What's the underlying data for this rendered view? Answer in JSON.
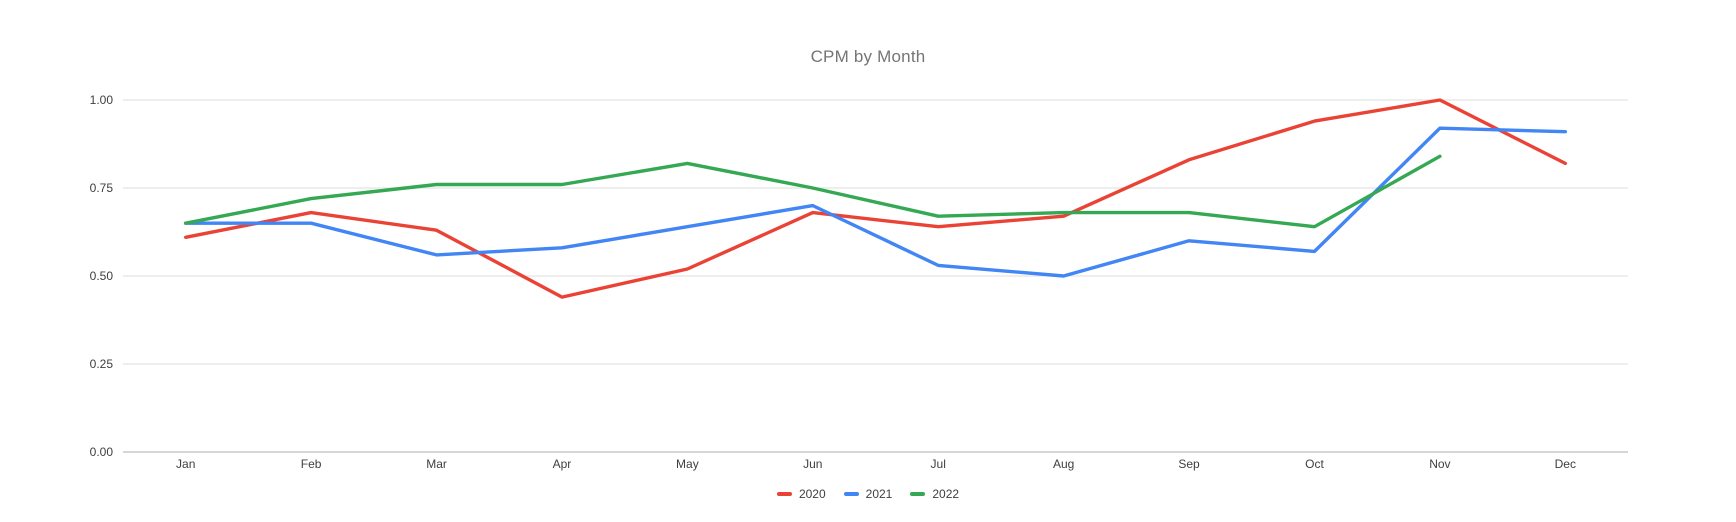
{
  "chart_data": {
    "type": "line",
    "title": "CPM by Month",
    "xlabel": "",
    "ylabel": "",
    "categories": [
      "Jan",
      "Feb",
      "Mar",
      "Apr",
      "May",
      "Jun",
      "Jul",
      "Aug",
      "Sep",
      "Oct",
      "Nov",
      "Dec"
    ],
    "series": [
      {
        "name": "2020",
        "color": "#EA4335",
        "values": [
          0.61,
          0.68,
          0.63,
          0.44,
          0.52,
          0.68,
          0.64,
          0.67,
          0.83,
          0.94,
          1.0,
          0.82
        ]
      },
      {
        "name": "2021",
        "color": "#4285F4",
        "values": [
          0.65,
          0.65,
          0.56,
          0.58,
          0.64,
          0.7,
          0.53,
          0.5,
          0.6,
          0.57,
          0.92,
          0.91
        ]
      },
      {
        "name": "2022",
        "color": "#34A853",
        "values": [
          0.65,
          0.72,
          0.76,
          0.76,
          0.82,
          0.75,
          0.67,
          0.68,
          0.68,
          0.64,
          0.84,
          null
        ]
      }
    ],
    "y_ticks": [
      "0.00",
      "0.25",
      "0.50",
      "0.75",
      "1.00"
    ],
    "ylim": [
      0,
      1
    ],
    "grid": "horizontal",
    "legend_position": "bottom-center",
    "colors": {
      "grid_line": "#e8e8e8",
      "axis_line": "#d6d6d6",
      "axis_label": "#3c4043",
      "title_text": "#757575"
    }
  }
}
